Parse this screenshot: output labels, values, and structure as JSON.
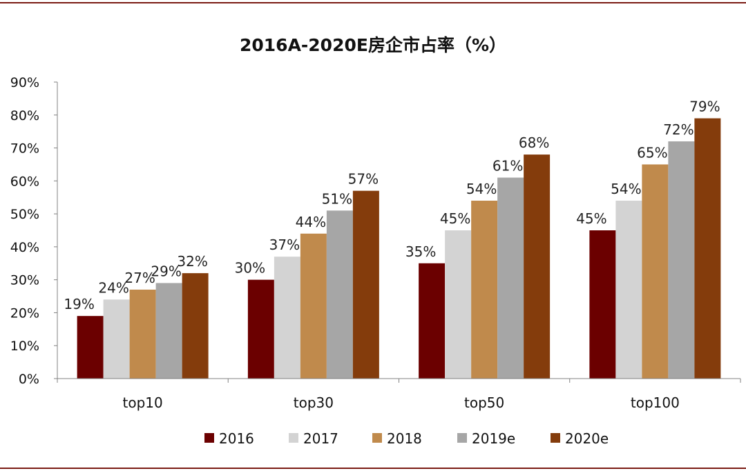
{
  "chart_data": {
    "type": "bar",
    "title": "2016A-2020E房企市占率（%）",
    "categories": [
      "top10",
      "top30",
      "top50",
      "top100"
    ],
    "series": [
      {
        "name": "2016",
        "color": "#6b0000",
        "values": [
          19,
          30,
          35,
          45
        ]
      },
      {
        "name": "2017",
        "color": "#d3d3d3",
        "values": [
          24,
          37,
          45,
          54
        ]
      },
      {
        "name": "2018",
        "color": "#c08a4c",
        "values": [
          27,
          44,
          54,
          65
        ]
      },
      {
        "name": "2019e",
        "color": "#a6a6a6",
        "values": [
          29,
          51,
          61,
          72
        ]
      },
      {
        "name": "2020e",
        "color": "#843c0c",
        "values": [
          32,
          57,
          68,
          79
        ]
      }
    ],
    "ylim": [
      0,
      90
    ],
    "yticks": [
      0,
      10,
      20,
      30,
      40,
      50,
      60,
      70,
      80,
      90
    ],
    "ytick_format": "%",
    "data_label_format": "%",
    "legend_position": "bottom",
    "grid": false
  }
}
